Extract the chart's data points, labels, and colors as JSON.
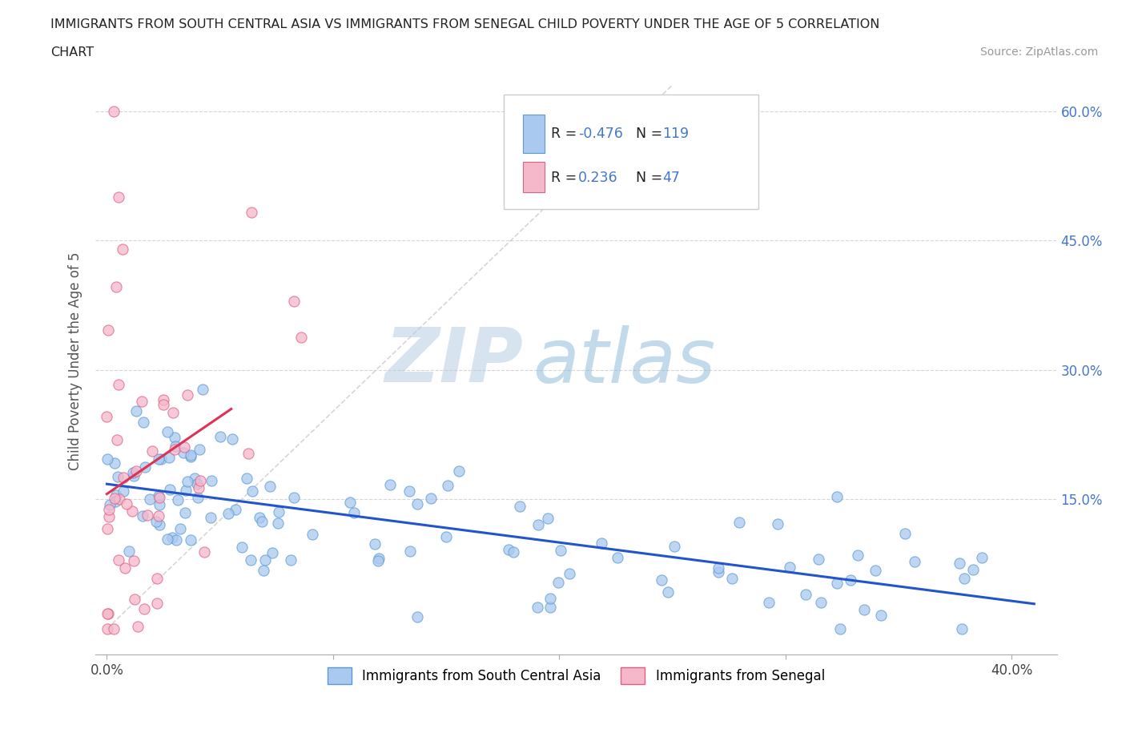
{
  "title_line1": "IMMIGRANTS FROM SOUTH CENTRAL ASIA VS IMMIGRANTS FROM SENEGAL CHILD POVERTY UNDER THE AGE OF 5 CORRELATION",
  "title_line2": "CHART",
  "source_text": "Source: ZipAtlas.com",
  "ylabel": "Child Poverty Under the Age of 5",
  "x_lim": [
    -0.005,
    0.42
  ],
  "y_lim": [
    -0.03,
    0.65
  ],
  "R_blue": -0.476,
  "N_blue": 119,
  "R_pink": 0.236,
  "N_pink": 47,
  "color_blue": "#aac9f0",
  "color_pink": "#f5b8cb",
  "edge_color_blue": "#5b9bd5",
  "edge_color_pink": "#e06080",
  "line_color_blue": "#2255cc",
  "line_color_pink": "#dd3355",
  "watermark_zip": "ZIP",
  "watermark_atlas": "atlas",
  "legend_label_blue": "Immigrants from South Central Asia",
  "legend_label_pink": "Immigrants from Senegal",
  "background_color": "#ffffff",
  "grid_color": "#cccccc",
  "title_color": "#222222",
  "axis_label_color": "#555555",
  "tick_color_right": "#4477cc",
  "stat_label_color": "#222222",
  "stat_value_color": "#4477cc",
  "ref_line_color": "#cccccc",
  "blue_line_intercept": 0.172,
  "blue_line_slope": -0.38,
  "pink_line_intercept": 0.145,
  "pink_line_slope": 1.8,
  "pink_line_xmax": 0.055
}
